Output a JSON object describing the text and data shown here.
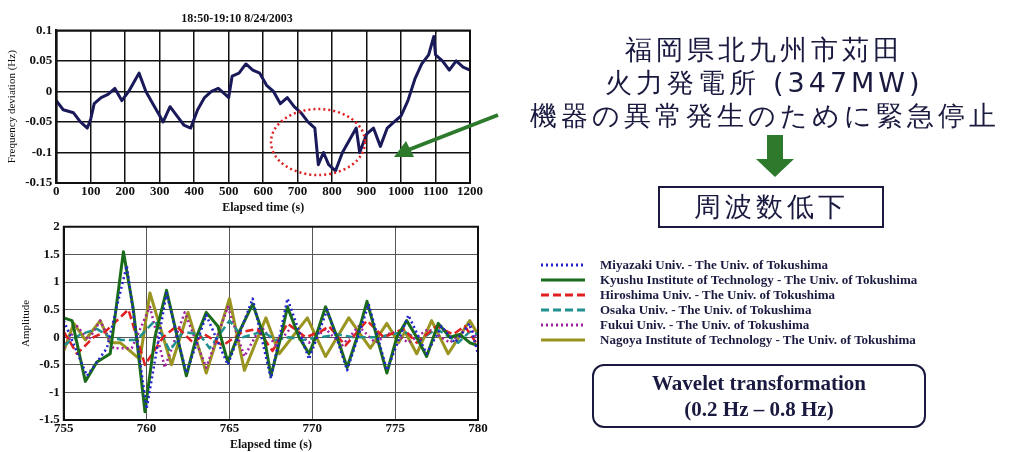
{
  "chart_data": [
    {
      "type": "line",
      "title": "18:50-19:10 8/24/2003",
      "xlabel": "Elapsed time (s)",
      "ylabel": "Frequency deviation (Hz)",
      "x": [
        0,
        20,
        50,
        70,
        90,
        100,
        110,
        130,
        150,
        170,
        190,
        210,
        230,
        240,
        260,
        280,
        300,
        310,
        330,
        350,
        370,
        390,
        410,
        430,
        450,
        470,
        490,
        500,
        510,
        530,
        550,
        570,
        590,
        610,
        630,
        650,
        670,
        690,
        710,
        730,
        750,
        760,
        775,
        790,
        810,
        830,
        850,
        870,
        880,
        900,
        920,
        940,
        960,
        980,
        1000,
        1020,
        1040,
        1060,
        1080,
        1095,
        1100,
        1120,
        1140,
        1160,
        1180,
        1200
      ],
      "series": [
        {
          "color": "#1a1a5a",
          "values": [
            -0.015,
            -0.03,
            -0.035,
            -0.05,
            -0.06,
            -0.045,
            -0.02,
            -0.01,
            -0.005,
            0.005,
            -0.015,
            0.0,
            0.02,
            0.03,
            0.0,
            -0.02,
            -0.04,
            -0.05,
            -0.025,
            -0.04,
            -0.055,
            -0.06,
            -0.03,
            -0.01,
            0.0,
            0.005,
            -0.005,
            -0.01,
            0.025,
            0.03,
            0.045,
            0.035,
            0.03,
            0.01,
            0.0,
            -0.02,
            -0.01,
            -0.025,
            -0.035,
            -0.05,
            -0.06,
            -0.12,
            -0.1,
            -0.12,
            -0.13,
            -0.1,
            -0.08,
            -0.06,
            -0.1,
            -0.07,
            -0.06,
            -0.09,
            -0.06,
            -0.05,
            -0.04,
            -0.015,
            0.02,
            0.045,
            0.06,
            0.09,
            0.06,
            0.05,
            0.035,
            0.05,
            0.04,
            0.035
          ]
        }
      ],
      "xlim": [
        0,
        1200
      ],
      "ylim": [
        -0.15,
        0.1
      ],
      "xticks": [
        0,
        100,
        200,
        300,
        400,
        500,
        600,
        700,
        800,
        900,
        1000,
        1100,
        1200
      ],
      "yticks": [
        -0.15,
        -0.1,
        -0.05,
        0,
        0.05,
        0.1
      ],
      "grid": true,
      "line_style": "solid",
      "annotations": [
        "福岡県北九州市苅田",
        "火力発電所 (347MW)",
        "機器の異常発生のために緊急停止",
        "周波数低下"
      ]
    },
    {
      "type": "line",
      "xlabel": "Elapsed time (s)",
      "ylabel": "Amplitude",
      "series": [
        {
          "name": "Miyazaki Univ. - The Univ. of Tokushima",
          "color": "#2323d0",
          "line_style": "dotted",
          "x": [
            755,
            756.4,
            757.6,
            758.8,
            760,
            761.2,
            762.4,
            763.6,
            764.9,
            766.4,
            767.5,
            768.5,
            769.8,
            770.9,
            772.1,
            773.4,
            774.5,
            775.8,
            776.9,
            777.8,
            778.6,
            779.5,
            780
          ],
          "values": [
            0.3,
            -0.7,
            -0.2,
            1.3,
            -1.3,
            0.8,
            -0.65,
            0.4,
            -0.5,
            0.7,
            -0.75,
            0.7,
            -0.4,
            0.5,
            -0.6,
            0.6,
            -0.6,
            0.4,
            -0.3,
            0.2,
            -0.1,
            0.25,
            -0.3
          ]
        },
        {
          "name": "Kyushu Institute of Technology - The Univ. of Tokushima",
          "color": "#1a6b1a",
          "line_style": "solid",
          "x": [
            755,
            755.5,
            756.3,
            757,
            757.8,
            758.6,
            759.2,
            759.9,
            760.5,
            761.2,
            761.7,
            762.4,
            763,
            763.6,
            764.3,
            764.9,
            765.6,
            766.4,
            767.1,
            767.5,
            768.1,
            768.5,
            769.2,
            769.8,
            770.2,
            770.8,
            771.5,
            772.1,
            772.7,
            773.3,
            773.9,
            774.5,
            775.1,
            775.7,
            776.3,
            776.9,
            777.6,
            778.3,
            778.9,
            779.5,
            780
          ],
          "values": [
            0.35,
            0.3,
            -0.8,
            -0.45,
            -0.3,
            1.55,
            0.5,
            -1.35,
            0.0,
            0.85,
            0.2,
            -0.7,
            0.0,
            0.45,
            0.2,
            -0.45,
            0.1,
            0.6,
            0.0,
            -0.7,
            0.0,
            0.55,
            0.0,
            -0.3,
            0.0,
            0.55,
            0.0,
            -0.55,
            0.0,
            0.65,
            0.0,
            -0.65,
            0.0,
            0.3,
            0.0,
            -0.35,
            0.25,
            0.0,
            0.05,
            -0.1,
            -0.15
          ]
        },
        {
          "name": "Hiroshima Univ. - The Univ. of Tokushima",
          "color": "#e02020",
          "line_style": "dashed",
          "x": [
            755,
            755.8,
            756.8,
            757.5,
            758.9,
            759.9,
            761,
            761.8,
            762.8,
            763.5,
            764.6,
            765.8,
            766.7,
            767.6,
            768.5,
            769.6,
            770.5,
            771,
            772,
            773.3,
            774.3,
            775.5,
            776.3,
            777.5,
            778.5,
            779.2,
            780
          ],
          "values": [
            0.1,
            -0.3,
            0.0,
            0.1,
            0.5,
            -0.5,
            0.0,
            0.2,
            -0.1,
            0.05,
            -0.15,
            0.1,
            0.15,
            -0.25,
            0.25,
            0.0,
            0.1,
            0.2,
            -0.15,
            0.3,
            0.0,
            0.15,
            -0.1,
            0.2,
            0.05,
            0.2,
            -0.15
          ]
        },
        {
          "name": "Osaka Univ. - The Univ. of Tokushima",
          "color": "#209090",
          "line_style": "dashed",
          "x": [
            755,
            756,
            757,
            757.8,
            758.5,
            759.4,
            760.5,
            761.4,
            762.2,
            763.2,
            763.8,
            765,
            765.8,
            767,
            767.8,
            768.6,
            769.4,
            770.5,
            771.5,
            772.5,
            774,
            775.5,
            776.5,
            777.5,
            778.8,
            779.5,
            780
          ],
          "values": [
            -0.15,
            0.05,
            0.15,
            0.0,
            -0.05,
            -0.05,
            0.3,
            -0.25,
            0.1,
            0.05,
            -0.2,
            0.3,
            0.0,
            0.1,
            -0.05,
            0.0,
            -0.05,
            0.0,
            0.05,
            0.0,
            0.0,
            0.1,
            -0.05,
            0.15,
            -0.1,
            0.1,
            0.05
          ]
        },
        {
          "name": "Fukui Univ. - The Univ. of Tokushima",
          "color": "#a020a0",
          "line_style": "dotted",
          "x": [
            755,
            755.8,
            756.5,
            757.2,
            758,
            759.1,
            760.2,
            761.1,
            762.3,
            763.6,
            764.9,
            765.9,
            766.9,
            767.8,
            768.8,
            769.8,
            770.8,
            771.8,
            772.8,
            773.8,
            774.8,
            775.8,
            777,
            778.3,
            779.5,
            780
          ],
          "values": [
            -0.2,
            0.2,
            -0.05,
            0.3,
            -0.2,
            -0.2,
            0.55,
            -0.55,
            0.45,
            -0.55,
            0.55,
            -0.35,
            0.2,
            -0.15,
            0.2,
            -0.1,
            0.15,
            -0.15,
            0.2,
            -0.1,
            0.1,
            -0.1,
            0.15,
            -0.1,
            0.2,
            -0.05
          ]
        },
        {
          "name": "Nagoya Institute of Technology - The Univ. of Tokushima",
          "color": "#9a9420",
          "line_style": "solid",
          "x": [
            755,
            755.6,
            756.3,
            757.2,
            757.8,
            758.4,
            759.6,
            760.2,
            760.9,
            761.5,
            762.5,
            763.6,
            765,
            765.9,
            767.2,
            768,
            769.7,
            770.8,
            772.2,
            773.5,
            774.5,
            775.2,
            775.6,
            776.3,
            777.2,
            778.2,
            779.5,
            780
          ],
          "values": [
            -0.25,
            0.25,
            -0.05,
            0.3,
            -0.1,
            -0.1,
            -0.4,
            0.8,
            0.1,
            -0.5,
            0.45,
            -0.65,
            0.7,
            -0.6,
            0.35,
            -0.3,
            0.35,
            -0.35,
            0.35,
            -0.2,
            0.25,
            -0.1,
            0.1,
            -0.3,
            0.3,
            -0.3,
            0.3,
            0.05
          ]
        }
      ],
      "xlim": [
        755,
        780
      ],
      "ylim": [
        -1.5,
        2
      ],
      "xticks": [
        755,
        760,
        765,
        770,
        775,
        780
      ],
      "yticks": [
        -1.5,
        -1,
        -0.5,
        0,
        0.5,
        1,
        1.5,
        2
      ],
      "grid": true,
      "legend": "right",
      "annotations": [
        "Wavelet transformation",
        "(0.2 Hz – 0.8 Hz)"
      ]
    }
  ]
}
